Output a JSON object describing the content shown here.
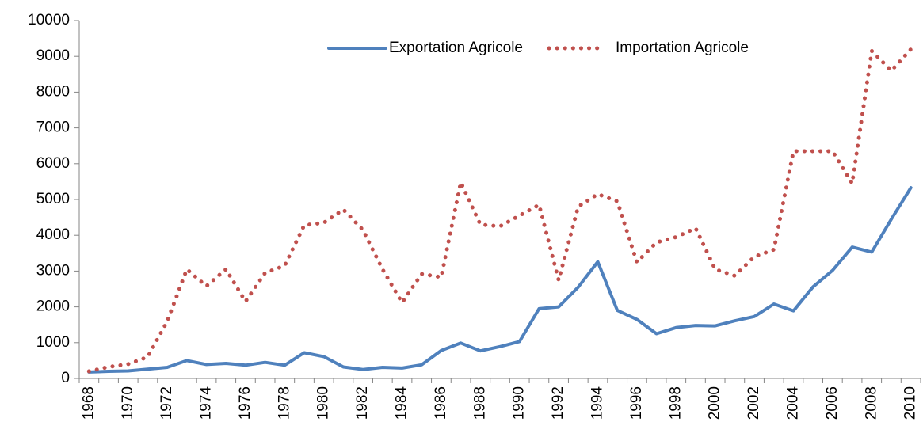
{
  "chart_data": {
    "type": "line",
    "categories": [
      "1968",
      null,
      "1970",
      null,
      "1972",
      null,
      "1974",
      null,
      "1976",
      null,
      "1978",
      null,
      "1980",
      null,
      "1982",
      null,
      "1984",
      null,
      "1986",
      null,
      "1988",
      null,
      "1990",
      null,
      "1992",
      null,
      "1994",
      null,
      "1996",
      null,
      "1998",
      null,
      "2000",
      null,
      "2002",
      null,
      "2004",
      null,
      "2006",
      null,
      "2008",
      null,
      "2010"
    ],
    "series": [
      {
        "name": "Exportation Agricole",
        "color": "#4f81bd",
        "style": "solid",
        "values": [
          180,
          200,
          210,
          260,
          310,
          500,
          390,
          420,
          370,
          450,
          370,
          720,
          610,
          320,
          250,
          310,
          290,
          380,
          780,
          990,
          770,
          890,
          1030,
          1950,
          2000,
          2550,
          3260,
          1900,
          1650,
          1250,
          1420,
          1480,
          1470,
          1610,
          1730,
          2080,
          1890,
          2560,
          3020,
          3670,
          3530,
          4450,
          5330
        ]
      },
      {
        "name": "Importation Agricole",
        "color": "#c0504d",
        "style": "dotted",
        "values": [
          200,
          320,
          400,
          600,
          1600,
          3050,
          2580,
          3050,
          2150,
          2950,
          3150,
          4280,
          4350,
          4720,
          4150,
          3050,
          2120,
          2920,
          2830,
          5480,
          4300,
          4250,
          4550,
          4850,
          2750,
          4800,
          5150,
          4950,
          3250,
          3800,
          3950,
          4200,
          3050,
          2870,
          3400,
          3600,
          6350,
          6350,
          6350,
          5450,
          9150,
          8600,
          9200
        ]
      }
    ],
    "ylim": [
      0,
      10000
    ],
    "yticks": [
      0,
      1000,
      2000,
      3000,
      4000,
      5000,
      6000,
      7000,
      8000,
      9000,
      10000
    ],
    "grid": false,
    "legend": "top"
  }
}
